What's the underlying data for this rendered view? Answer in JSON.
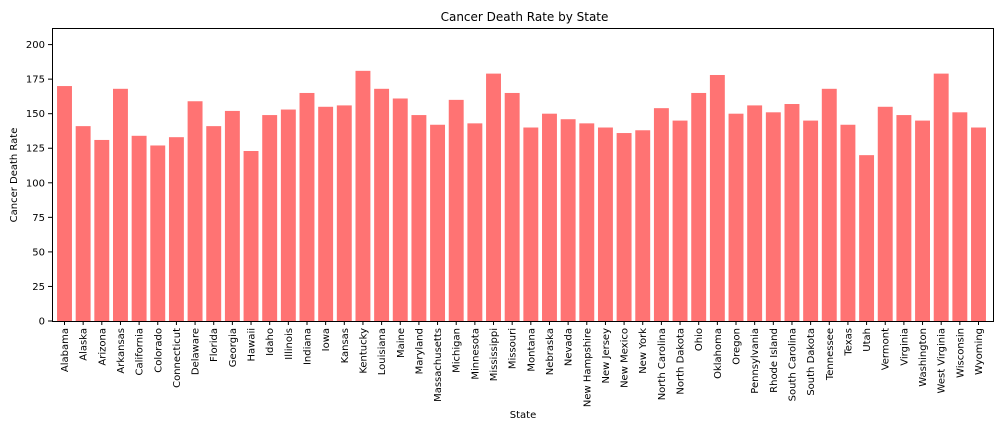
{
  "chart_data": {
    "type": "bar",
    "title": "Cancer Death Rate by State",
    "xlabel": "State",
    "ylabel": "Cancer Death Rate",
    "ylim": [
      0,
      212
    ],
    "yticks": [
      0,
      25,
      50,
      75,
      100,
      125,
      150,
      175,
      200
    ],
    "grid": false,
    "bar_color": "#ff7373",
    "categories": [
      "Alabama",
      "Alaska",
      "Arizona",
      "Arkansas",
      "California",
      "Colorado",
      "Connecticut",
      "Delaware",
      "Florida",
      "Georgia",
      "Hawaii",
      "Idaho",
      "Illinois",
      "Indiana",
      "Iowa",
      "Kansas",
      "Kentucky",
      "Louisiana",
      "Maine",
      "Maryland",
      "Massachusetts",
      "Michigan",
      "Minnesota",
      "Mississippi",
      "Missouri",
      "Montana",
      "Nebraska",
      "Nevada",
      "New Hampshire",
      "New Jersey",
      "New Mexico",
      "New York",
      "North Carolina",
      "North Dakota",
      "Ohio",
      "Oklahoma",
      "Oregon",
      "Pennsylvania",
      "Rhode Island",
      "South Carolina",
      "South Dakota",
      "Tennessee",
      "Texas",
      "Utah",
      "Vermont",
      "Virginia",
      "Washington",
      "West Virginia",
      "Wisconsin",
      "Wyoming"
    ],
    "values": [
      170,
      141,
      131,
      168,
      134,
      127,
      133,
      159,
      141,
      152,
      123,
      149,
      153,
      165,
      155,
      156,
      181,
      168,
      161,
      149,
      142,
      160,
      143,
      179,
      165,
      140,
      150,
      146,
      143,
      140,
      136,
      138,
      154,
      145,
      165,
      178,
      150,
      156,
      151,
      157,
      145,
      168,
      142,
      120,
      155,
      149,
      145,
      179,
      151,
      140
    ]
  }
}
